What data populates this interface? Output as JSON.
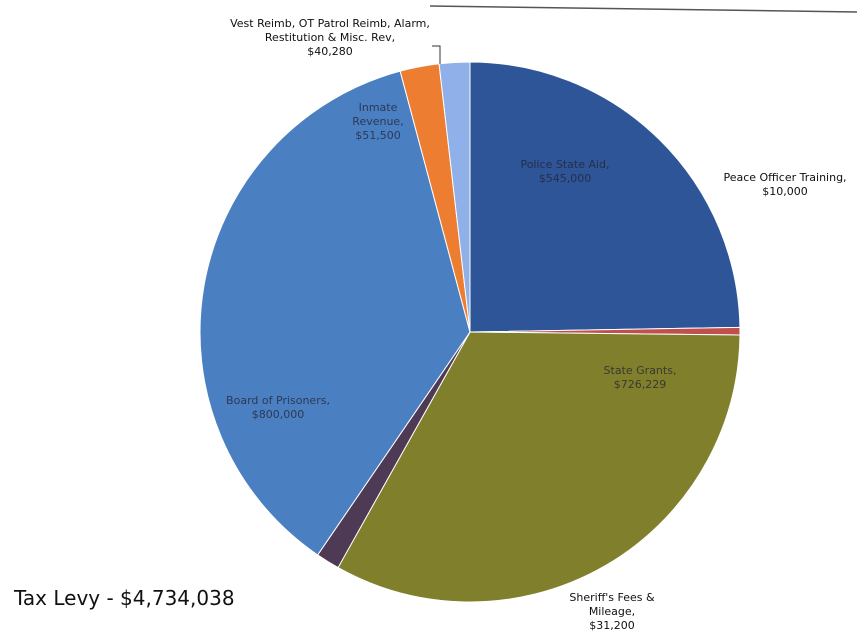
{
  "chart_data": {
    "type": "pie",
    "annotation": "Tax Levy - $4,734,038",
    "categories": [
      "Police State Aid,",
      "Peace Officer Training,",
      "State Grants,",
      "Sheriff's Fees & Mileage,",
      "Board of Prisoners,",
      "Inmate Revenue,",
      "Vest Reimb, OT Patrol Reimb, Alarm, Restitution & Misc. Rev,"
    ],
    "values": [
      545000,
      10000,
      726229,
      31200,
      800000,
      51500,
      40280
    ],
    "value_labels": [
      "$545,000",
      "$10,000",
      "$726,229",
      "$31,200",
      "$800,000",
      "$51,500",
      "$40,280"
    ],
    "colors": [
      "#2e5597",
      "#c0504d",
      "#807f2c",
      "#4f3a55",
      "#4a7fc1",
      "#ed7d31",
      "#8fb0e8"
    ]
  }
}
